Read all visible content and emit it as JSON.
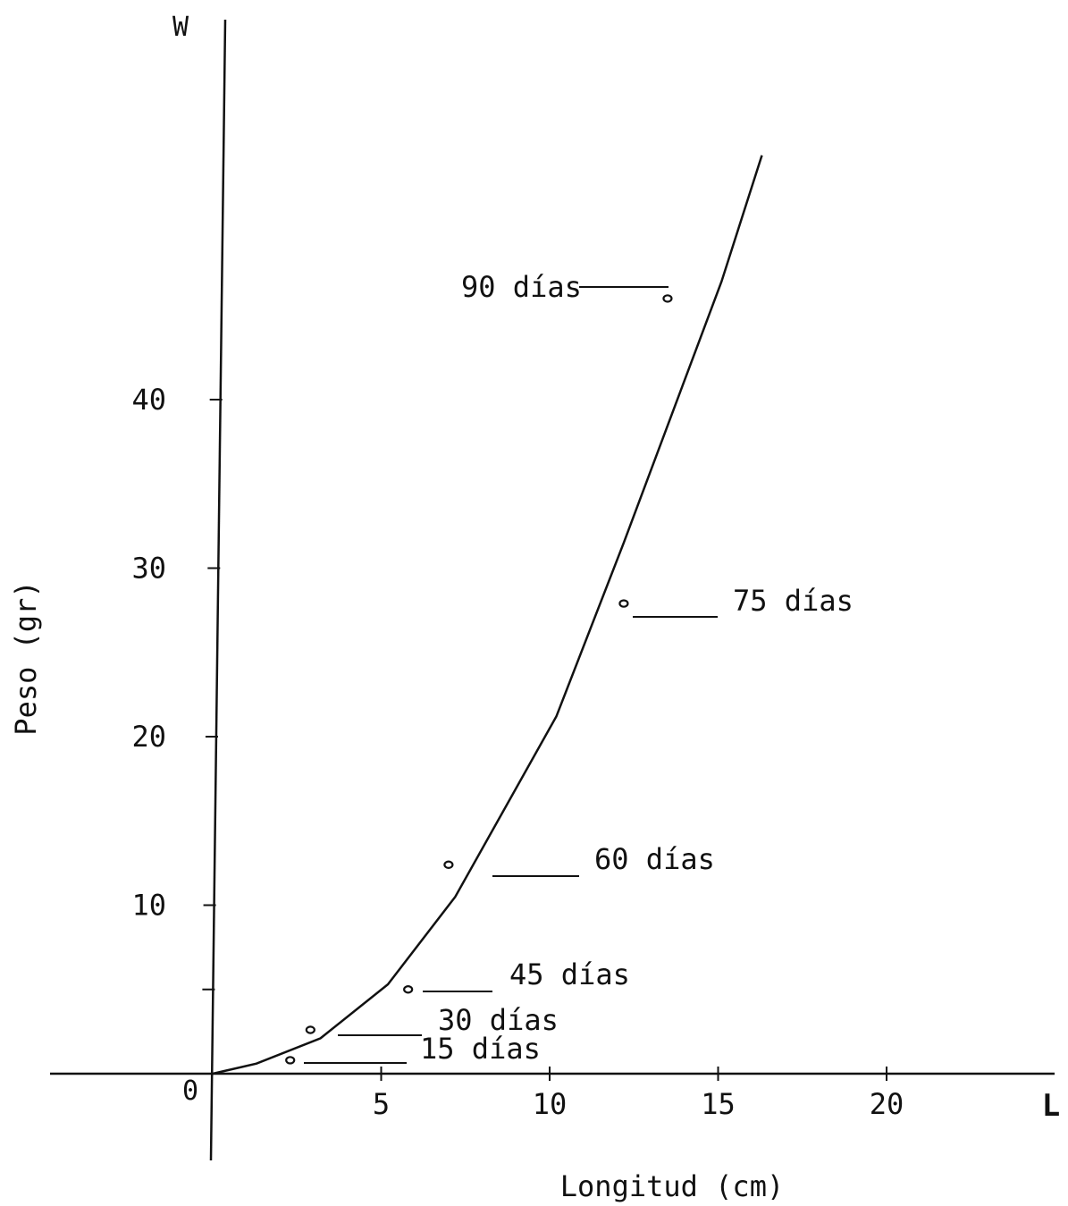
{
  "chart_data": {
    "type": "scatter",
    "xlabel": "Longitud (cm)",
    "ylabel": "Peso (gr)",
    "x_axis_letter": "L",
    "y_axis_letter": "W",
    "origin_label": "0",
    "xlim": [
      0,
      25
    ],
    "ylim": [
      0,
      50
    ],
    "x_ticks": [
      "5",
      "10",
      "15",
      "20"
    ],
    "y_ticks": [
      "10",
      "20",
      "30",
      "40"
    ],
    "grid": false,
    "curve": {
      "x": [
        0,
        1.3,
        3.2,
        5.2,
        7.2,
        10.2,
        12.2,
        15.1,
        16.3
      ],
      "y": [
        0,
        0.6,
        2.1,
        5.3,
        10.5,
        21.2,
        31.5,
        47.0,
        54.5
      ]
    },
    "points": [
      {
        "x": 2.3,
        "y": 0.8,
        "label": "15 días"
      },
      {
        "x": 2.9,
        "y": 2.6,
        "label": "30 días"
      },
      {
        "x": 5.8,
        "y": 5.0,
        "label": "45 días"
      },
      {
        "x": 7.0,
        "y": 12.4,
        "label": "60 días"
      },
      {
        "x": 12.2,
        "y": 27.9,
        "label": "75 días"
      },
      {
        "x": 13.5,
        "y": 46.0,
        "label": "90 días"
      }
    ]
  }
}
